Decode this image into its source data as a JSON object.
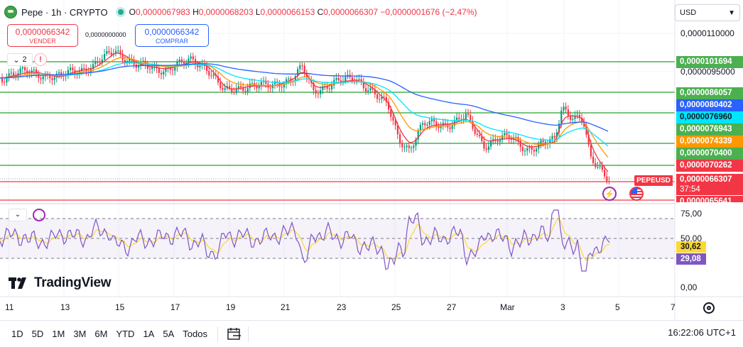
{
  "legend": {
    "symbol": "Pepe · 1h · CRYPTO",
    "open_label": "O",
    "open": "0,0000067983",
    "high_label": "H",
    "high": "0,0000068203",
    "low_label": "L",
    "low": "0,0000066153",
    "close_label": "C",
    "close": "0,0000066307",
    "change": "−0,0000001676 (−2,47%)"
  },
  "trade": {
    "sell_price": "0,0000066342",
    "sell_label": "VENDER",
    "spread": "0,0000000000",
    "buy_price": "0,0000066342",
    "buy_label": "COMPRAR"
  },
  "indicators_count": "2",
  "currency": "USD",
  "price_axis": {
    "ticks": [
      "0,0000110000",
      "0,0000095000"
    ],
    "tags": [
      {
        "text": "0,0000101694",
        "color": "#4caf50",
        "text_color": "#ffffff"
      },
      {
        "text": "0,0000086057",
        "color": "#4caf50",
        "text_color": "#ffffff"
      },
      {
        "text": "0,0000080402",
        "color": "#2962ff",
        "text_color": "#ffffff"
      },
      {
        "text": "0,0000076960",
        "color": "#00e5ff",
        "text_color": "#131722"
      },
      {
        "text": "0,0000076943",
        "color": "#4caf50",
        "text_color": "#ffffff"
      },
      {
        "text": "0,0000074339",
        "color": "#ff9800",
        "text_color": "#ffffff"
      },
      {
        "text": "0,0000070400",
        "color": "#4caf50",
        "text_color": "#ffffff"
      },
      {
        "text": "0,0000070262",
        "color": "#f23645",
        "text_color": "#ffffff"
      }
    ],
    "current_symbol": "PEPEUSD",
    "current_price": "0,0000066307",
    "countdown": "37:54",
    "bottom_tag": "0,0000065641"
  },
  "rsi": {
    "ticks": [
      "75,00",
      "50,00",
      "0,00"
    ],
    "ma_value": "30,62",
    "rsi_value": "29,08",
    "rsi_color": "#7e57c2",
    "ma_color": "#fdd835"
  },
  "x_axis": {
    "labels": [
      "11",
      "13",
      "15",
      "17",
      "19",
      "21",
      "23",
      "25",
      "27",
      "Mar",
      "3",
      "5",
      "7"
    ]
  },
  "brand": "TradingView",
  "timeframes": [
    "1D",
    "5D",
    "1M",
    "3M",
    "6M",
    "YTD",
    "1A",
    "5A",
    "Todos"
  ],
  "clock": "16:22:06 UTC+1",
  "colors": {
    "up": "#089981",
    "down": "#f23645",
    "level_line": "#4caf50",
    "ma_blue": "#2962ff",
    "ma_cyan": "#00e5ff",
    "ma_orange": "#ff9800",
    "ma_red": "#f23645",
    "grid": "#f0f3fa"
  }
}
